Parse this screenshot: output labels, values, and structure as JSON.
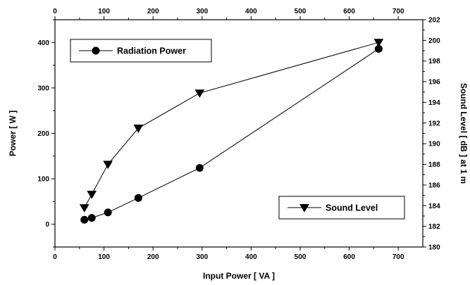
{
  "chart_data": {
    "type": "line",
    "x_axis": {
      "label": "Input Power [ VA ]",
      "range": [
        0,
        750
      ],
      "ticks": [
        0,
        100,
        200,
        300,
        400,
        500,
        600,
        700
      ]
    },
    "y_axis_left": {
      "label": "Power [ W ]",
      "range": [
        -50,
        450
      ],
      "ticks": [
        0,
        100,
        200,
        300,
        400
      ]
    },
    "y_axis_right": {
      "label": "Sound Level [ dB ] at 1 m",
      "range": [
        180,
        202
      ],
      "ticks": [
        180,
        182,
        184,
        186,
        188,
        190,
        192,
        194,
        196,
        198,
        200,
        202
      ]
    },
    "grid": false,
    "series": [
      {
        "name": "Radiation Power",
        "axis": "left",
        "marker": "circle",
        "x": [
          60,
          75,
          108,
          170,
          295,
          660
        ],
        "y": [
          10,
          14,
          26,
          58,
          124,
          386
        ]
      },
      {
        "name": "Sound Level",
        "axis": "right",
        "marker": "triangle-down",
        "x": [
          60,
          75,
          108,
          170,
          295,
          660
        ],
        "y": [
          183.8,
          185.1,
          188.0,
          191.5,
          194.9,
          199.8
        ]
      }
    ],
    "legends": [
      {
        "series": "Radiation Power",
        "placement": "top-left"
      },
      {
        "series": "Sound Level",
        "placement": "bottom-right"
      }
    ]
  }
}
